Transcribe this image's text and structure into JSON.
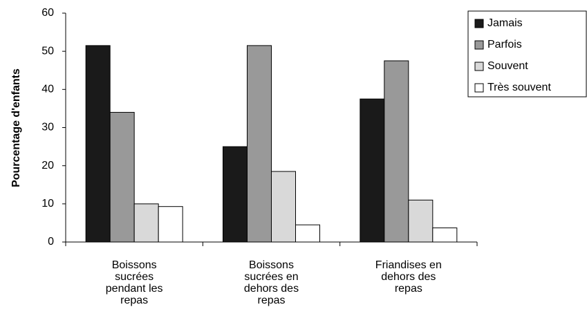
{
  "chart_data": {
    "type": "bar",
    "y_label": "Pourcentage d'enfants",
    "categories": [
      "Boissons sucrées pendant les repas",
      "Boissons sucrées en dehors des repas",
      "Friandises en dehors des repas"
    ],
    "series": [
      {
        "name": "Jamais",
        "color": "#1a1a1a",
        "values": [
          51.5,
          25,
          37.5
        ]
      },
      {
        "name": "Parfois",
        "color": "#999999",
        "values": [
          34,
          51.5,
          47.5
        ]
      },
      {
        "name": "Souvent",
        "color": "#d9d9d9",
        "values": [
          10,
          18.5,
          11
        ]
      },
      {
        "name": "Très souvent",
        "color": "#ffffff",
        "values": [
          9.3,
          4.5,
          3.7
        ]
      }
    ],
    "ylim": [
      0,
      60
    ],
    "yticks": [
      0,
      10,
      20,
      30,
      40,
      50,
      60
    ],
    "grid": false,
    "legend": "right"
  }
}
